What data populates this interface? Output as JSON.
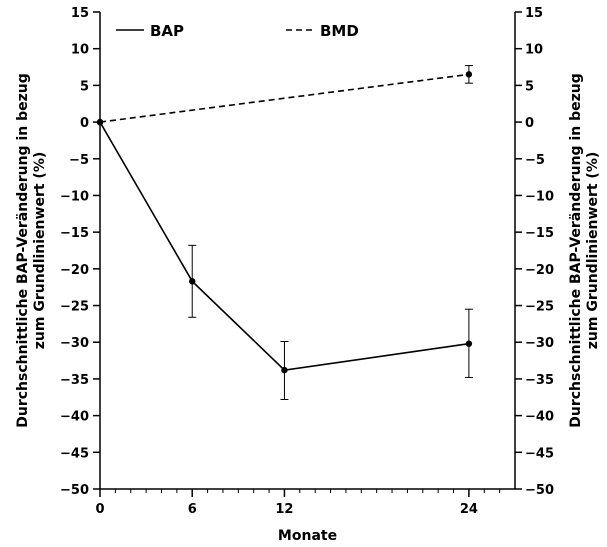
{
  "chart_data": {
    "type": "line",
    "xlabel": "Monate",
    "ylabel_left": "Durchschnittliche BAP-Veränderung in bezug zum Grundlinienwert (%)",
    "ylabel_right": "Durchschnittliche BAP-Veränderung in bezug zum Grundlinienwert (%)",
    "ylabel_left_lines": [
      "Durchschnittliche BAP-Veränderung in bezug",
      "zum Grundlinienwert (%)"
    ],
    "ylabel_right_lines": [
      "Durchschnittliche BAP-Veränderung in bezug",
      "zum Grundlinienwert (%)"
    ],
    "xlim": [
      0,
      27
    ],
    "ylim": [
      -50,
      15
    ],
    "x_ticks": [
      0,
      6,
      12,
      24
    ],
    "x_minor_ticks": [
      1,
      2,
      3,
      4,
      5,
      7,
      8,
      9,
      10,
      11,
      13,
      14,
      15,
      16,
      17,
      18,
      19,
      20,
      21,
      22,
      23,
      25,
      26
    ],
    "y_ticks": [
      15,
      10,
      5,
      0,
      -5,
      -10,
      -15,
      -20,
      -25,
      -30,
      -35,
      -40,
      -45,
      -50
    ],
    "y_tick_labels": [
      "15",
      "10",
      "5",
      "0",
      "−5",
      "−10",
      "−15",
      "−20",
      "−25",
      "−30",
      "−35",
      "−40",
      "−45",
      "−50"
    ],
    "grid": false,
    "legend_placement": "top",
    "series": [
      {
        "name": "BAP",
        "style": "solid",
        "color": "#000000",
        "points": [
          {
            "x": 0,
            "y": 0
          },
          {
            "x": 6,
            "y": -21.7,
            "err_low": -26.6,
            "err_high": -16.8
          },
          {
            "x": 12,
            "y": -33.8,
            "err_low": -37.8,
            "err_high": -29.9
          },
          {
            "x": 24,
            "y": -30.2,
            "err_low": -34.8,
            "err_high": -25.5
          }
        ]
      },
      {
        "name": "BMD",
        "style": "dashed",
        "color": "#000000",
        "points": [
          {
            "x": 0,
            "y": 0
          },
          {
            "x": 24,
            "y": 6.5,
            "err_low": 5.3,
            "err_high": 7.7
          }
        ]
      }
    ]
  }
}
